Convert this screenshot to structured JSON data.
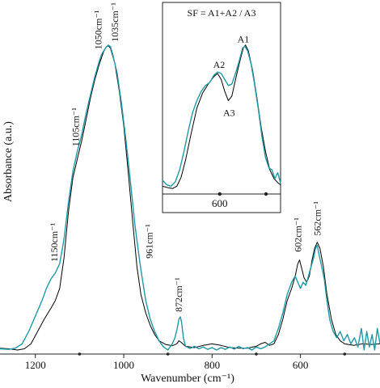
{
  "chart_data": {
    "type": "line",
    "title": "",
    "xlabel": "Wavenumber (cm⁻¹)",
    "ylabel": "Absorbance (a.u.)",
    "xlim": [
      1280,
      420
    ],
    "x_reversed": true,
    "ylim": [
      0,
      1.0
    ],
    "x_ticks": [
      1200,
      1000,
      800,
      600
    ],
    "minor_x_ticks": [
      1100,
      900,
      700,
      500
    ],
    "grid": false,
    "legend": "none",
    "series": [
      {
        "color": "#000000",
        "points": [
          [
            1280,
            0.006
          ],
          [
            1260,
            0.004
          ],
          [
            1240,
            0.0
          ],
          [
            1225,
            0.004
          ],
          [
            1210,
            0.02
          ],
          [
            1195,
            0.06
          ],
          [
            1180,
            0.1
          ],
          [
            1165,
            0.135
          ],
          [
            1155,
            0.16
          ],
          [
            1145,
            0.2
          ],
          [
            1135,
            0.3
          ],
          [
            1125,
            0.45
          ],
          [
            1115,
            0.56
          ],
          [
            1105,
            0.62
          ],
          [
            1095,
            0.68
          ],
          [
            1085,
            0.75
          ],
          [
            1075,
            0.82
          ],
          [
            1065,
            0.88
          ],
          [
            1055,
            0.93
          ],
          [
            1045,
            0.97
          ],
          [
            1040,
            0.983
          ],
          [
            1035,
            0.988
          ],
          [
            1030,
            0.98
          ],
          [
            1020,
            0.93
          ],
          [
            1010,
            0.84
          ],
          [
            1000,
            0.73
          ],
          [
            990,
            0.58
          ],
          [
            980,
            0.42
          ],
          [
            970,
            0.27
          ],
          [
            961,
            0.18
          ],
          [
            950,
            0.12
          ],
          [
            940,
            0.08
          ],
          [
            930,
            0.05
          ],
          [
            920,
            0.03
          ],
          [
            905,
            0.018
          ],
          [
            890,
            0.014
          ],
          [
            880,
            0.02
          ],
          [
            875,
            0.03
          ],
          [
            870,
            0.025
          ],
          [
            860,
            0.012
          ],
          [
            840,
            0.008
          ],
          [
            820,
            0.015
          ],
          [
            800,
            0.02
          ],
          [
            780,
            0.015
          ],
          [
            760,
            0.008
          ],
          [
            740,
            0.006
          ],
          [
            720,
            0.006
          ],
          [
            700,
            0.012
          ],
          [
            690,
            0.02
          ],
          [
            680,
            0.025
          ],
          [
            670,
            0.015
          ],
          [
            660,
            0.02
          ],
          [
            650,
            0.05
          ],
          [
            640,
            0.1
          ],
          [
            630,
            0.16
          ],
          [
            620,
            0.2
          ],
          [
            612,
            0.24
          ],
          [
            606,
            0.28
          ],
          [
            602,
            0.292
          ],
          [
            598,
            0.27
          ],
          [
            592,
            0.235
          ],
          [
            586,
            0.22
          ],
          [
            580,
            0.24
          ],
          [
            574,
            0.29
          ],
          [
            568,
            0.33
          ],
          [
            562,
            0.35
          ],
          [
            556,
            0.33
          ],
          [
            548,
            0.27
          ],
          [
            540,
            0.18
          ],
          [
            530,
            0.1
          ],
          [
            520,
            0.05
          ],
          [
            510,
            0.03
          ],
          [
            500,
            0.02
          ],
          [
            480,
            0.015
          ],
          [
            460,
            0.02
          ],
          [
            440,
            0.018
          ],
          [
            420,
            0.02
          ]
        ]
      },
      {
        "color": "#1E9AA6",
        "points": [
          [
            1280,
            0.004
          ],
          [
            1260,
            0.002
          ],
          [
            1245,
            0.006
          ],
          [
            1230,
            0.02
          ],
          [
            1215,
            0.06
          ],
          [
            1200,
            0.11
          ],
          [
            1185,
            0.16
          ],
          [
            1175,
            0.2
          ],
          [
            1165,
            0.23
          ],
          [
            1155,
            0.25
          ],
          [
            1145,
            0.28
          ],
          [
            1135,
            0.36
          ],
          [
            1125,
            0.48
          ],
          [
            1115,
            0.58
          ],
          [
            1105,
            0.645
          ],
          [
            1095,
            0.7
          ],
          [
            1085,
            0.77
          ],
          [
            1075,
            0.83
          ],
          [
            1065,
            0.89
          ],
          [
            1055,
            0.94
          ],
          [
            1050,
            0.96
          ],
          [
            1045,
            0.972
          ],
          [
            1040,
            0.983
          ],
          [
            1035,
            0.99
          ],
          [
            1030,
            0.985
          ],
          [
            1025,
            0.96
          ],
          [
            1015,
            0.9
          ],
          [
            1005,
            0.8
          ],
          [
            995,
            0.68
          ],
          [
            985,
            0.55
          ],
          [
            975,
            0.41
          ],
          [
            965,
            0.3
          ],
          [
            961,
            0.26
          ],
          [
            950,
            0.16
          ],
          [
            940,
            0.1
          ],
          [
            930,
            0.06
          ],
          [
            920,
            0.03
          ],
          [
            910,
            0.01
          ],
          [
            900,
            0.0
          ],
          [
            895,
            0.01
          ],
          [
            890,
            0.02
          ],
          [
            884,
            0.04
          ],
          [
            879,
            0.07
          ],
          [
            875,
            0.1
          ],
          [
            872,
            0.108
          ],
          [
            869,
            0.09
          ],
          [
            865,
            0.04
          ],
          [
            860,
            0.012
          ],
          [
            850,
            0.005
          ],
          [
            840,
            0.012
          ],
          [
            830,
            0.004
          ],
          [
            820,
            0.01
          ],
          [
            810,
            0.002
          ],
          [
            800,
            0.008
          ],
          [
            790,
            0.0
          ],
          [
            780,
            0.008
          ],
          [
            770,
            0.002
          ],
          [
            760,
            0.01
          ],
          [
            750,
            0.003
          ],
          [
            740,
            0.012
          ],
          [
            730,
            0.004
          ],
          [
            720,
            0.008
          ],
          [
            710,
            0.0
          ],
          [
            700,
            0.01
          ],
          [
            690,
            0.004
          ],
          [
            680,
            0.01
          ],
          [
            670,
            0.02
          ],
          [
            660,
            0.03
          ],
          [
            650,
            0.07
          ],
          [
            640,
            0.12
          ],
          [
            630,
            0.18
          ],
          [
            620,
            0.22
          ],
          [
            612,
            0.24
          ],
          [
            606,
            0.22
          ],
          [
            600,
            0.2
          ],
          [
            594,
            0.22
          ],
          [
            588,
            0.21
          ],
          [
            582,
            0.24
          ],
          [
            576,
            0.27
          ],
          [
            570,
            0.3
          ],
          [
            566,
            0.33
          ],
          [
            562,
            0.34
          ],
          [
            558,
            0.31
          ],
          [
            552,
            0.27
          ],
          [
            546,
            0.23
          ],
          [
            540,
            0.16
          ],
          [
            534,
            0.1
          ],
          [
            526,
            0.06
          ],
          [
            518,
            0.04
          ],
          [
            510,
            0.06
          ],
          [
            502,
            0.03
          ],
          [
            494,
            0.05
          ],
          [
            486,
            0.02
          ],
          [
            478,
            0.04
          ],
          [
            470,
            0.01
          ],
          [
            462,
            0.07
          ],
          [
            456,
            0.0
          ],
          [
            450,
            0.06
          ],
          [
            444,
            0.01
          ],
          [
            438,
            0.05
          ],
          [
            432,
            0.0
          ],
          [
            426,
            0.07
          ],
          [
            420,
            0.02
          ]
        ]
      }
    ],
    "annotations": [
      {
        "text": "1050cm⁻¹",
        "x": 1050
      },
      {
        "text": "1035cm⁻¹",
        "x": 1035
      },
      {
        "text": "1105cm⁻¹",
        "x": 1105
      },
      {
        "text": "1150cm⁻¹",
        "x": 1150
      },
      {
        "text": "961cm⁻¹",
        "x": 961
      },
      {
        "text": "872cm⁻¹",
        "x": 872
      },
      {
        "text": "602cm⁻¹",
        "x": 602
      },
      {
        "text": "562cm⁻¹",
        "x": 562
      }
    ],
    "inset": {
      "title": "SF = A1+A2 / A3",
      "xlim": [
        680,
        515
      ],
      "ylim": [
        0,
        1.0
      ],
      "x_ticks": [
        600
      ],
      "labels": [
        {
          "text": "A1",
          "x": 567
        },
        {
          "text": "A2",
          "x": 601
        },
        {
          "text": "A3",
          "x": 587
        }
      ],
      "series": [
        {
          "color": "#000000",
          "points": [
            [
              680,
              0.03
            ],
            [
              672,
              0.02
            ],
            [
              666,
              0.015
            ],
            [
              660,
              0.03
            ],
            [
              654,
              0.09
            ],
            [
              648,
              0.2
            ],
            [
              640,
              0.38
            ],
            [
              632,
              0.55
            ],
            [
              624,
              0.65
            ],
            [
              616,
              0.71
            ],
            [
              608,
              0.76
            ],
            [
              603,
              0.78
            ],
            [
              598,
              0.74
            ],
            [
              593,
              0.66
            ],
            [
              588,
              0.6
            ],
            [
              583,
              0.63
            ],
            [
              578,
              0.74
            ],
            [
              572,
              0.86
            ],
            [
              567,
              0.95
            ],
            [
              564,
              0.97
            ],
            [
              560,
              0.93
            ],
            [
              554,
              0.8
            ],
            [
              548,
              0.62
            ],
            [
              542,
              0.42
            ],
            [
              536,
              0.26
            ],
            [
              530,
              0.14
            ],
            [
              524,
              0.08
            ],
            [
              518,
              0.05
            ],
            [
              515,
              0.04
            ]
          ]
        },
        {
          "color": "#1E9AA6",
          "points": [
            [
              680,
              0.07
            ],
            [
              674,
              0.04
            ],
            [
              668,
              0.03
            ],
            [
              662,
              0.06
            ],
            [
              656,
              0.14
            ],
            [
              650,
              0.26
            ],
            [
              644,
              0.4
            ],
            [
              638,
              0.52
            ],
            [
              632,
              0.6
            ],
            [
              626,
              0.66
            ],
            [
              620,
              0.7
            ],
            [
              614,
              0.72
            ],
            [
              608,
              0.77
            ],
            [
              603,
              0.79
            ],
            [
              598,
              0.78
            ],
            [
              593,
              0.74
            ],
            [
              588,
              0.7
            ],
            [
              583,
              0.71
            ],
            [
              578,
              0.78
            ],
            [
              573,
              0.86
            ],
            [
              568,
              0.95
            ],
            [
              565,
              0.96
            ],
            [
              561,
              0.93
            ],
            [
              556,
              0.84
            ],
            [
              551,
              0.7
            ],
            [
              546,
              0.54
            ],
            [
              541,
              0.36
            ],
            [
              536,
              0.22
            ],
            [
              531,
              0.15
            ],
            [
              527,
              0.14
            ],
            [
              523,
              0.08
            ],
            [
              519,
              0.12
            ],
            [
              515,
              0.05
            ]
          ]
        }
      ]
    }
  }
}
